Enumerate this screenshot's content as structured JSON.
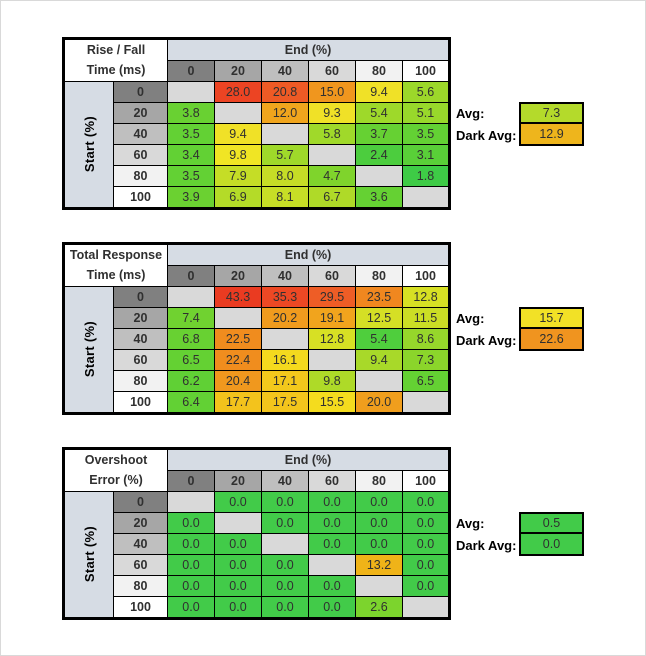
{
  "page": {
    "background": "#FFFFFF",
    "frame_border": "#D9D9D9"
  },
  "shared": {
    "header_shades": [
      "#808080",
      "#A6A6A6",
      "#BFBFBF",
      "#D9D9D9",
      "#F2F2F2",
      "#FFFFFF"
    ],
    "header_band_color": "#D6DCE4",
    "blank_cell_color": "#D9D9D9",
    "grid_color": "#000000",
    "value_text_color": "#303030"
  },
  "chart_data": [
    {
      "type": "heatmap",
      "id": "rise-fall-time",
      "title_line1": "Rise / Fall",
      "title_line2": "Time (ms)",
      "x_axis_label": "End (%)",
      "y_axis_label": "Start (%)",
      "columns": [
        0,
        20,
        40,
        60,
        80,
        100
      ],
      "rows": [
        0,
        20,
        40,
        60,
        80,
        100
      ],
      "values": [
        [
          null,
          28.0,
          20.8,
          15.0,
          9.4,
          5.6
        ],
        [
          3.8,
          null,
          12.0,
          9.3,
          5.4,
          5.1
        ],
        [
          3.5,
          9.4,
          null,
          5.8,
          3.7,
          3.5
        ],
        [
          3.4,
          9.8,
          5.7,
          null,
          2.4,
          3.1
        ],
        [
          3.5,
          7.9,
          8.0,
          4.7,
          null,
          1.8
        ],
        [
          3.9,
          6.9,
          8.1,
          6.7,
          3.6,
          null
        ]
      ],
      "cell_colors": [
        [
          null,
          "#EC4423",
          "#EE5A25",
          "#F0961E",
          "#F0E127",
          "#9CD82A"
        ],
        [
          "#69D132",
          null,
          "#F0A51D",
          "#F0E127",
          "#9ED92A",
          "#98D82B"
        ],
        [
          "#63D134",
          "#F0E127",
          null,
          "#A0D92A",
          "#66D133",
          "#63D134"
        ],
        [
          "#62D134",
          "#F0E524",
          "#9FD92A",
          null,
          "#4CCD3E",
          "#59CF38"
        ],
        [
          "#63D134",
          "#C5DD26",
          "#C6DD26",
          "#7FD42C",
          null,
          "#3ECB46"
        ],
        [
          "#6BD131",
          "#B4DB28",
          "#C7DE26",
          "#AFDA28",
          "#65D133",
          null
        ]
      ],
      "avg": {
        "label": "Avg:",
        "value": 7.3,
        "color": "#B4DA2B"
      },
      "dark_avg": {
        "label": "Dark Avg:",
        "value": 12.9,
        "color": "#EEB51C"
      }
    },
    {
      "type": "heatmap",
      "id": "total-response-time",
      "title_line1": "Total Response",
      "title_line2": "Time (ms)",
      "x_axis_label": "End (%)",
      "y_axis_label": "Start (%)",
      "columns": [
        0,
        20,
        40,
        60,
        80,
        100
      ],
      "rows": [
        0,
        20,
        40,
        60,
        80,
        100
      ],
      "values": [
        [
          null,
          43.3,
          35.3,
          29.5,
          23.5,
          12.8
        ],
        [
          7.4,
          null,
          20.2,
          19.1,
          12.5,
          11.5
        ],
        [
          6.8,
          22.5,
          null,
          12.8,
          5.4,
          8.6
        ],
        [
          6.5,
          22.4,
          16.1,
          null,
          9.4,
          7.3
        ],
        [
          6.2,
          20.4,
          17.1,
          9.8,
          null,
          6.5
        ],
        [
          6.4,
          17.7,
          17.5,
          15.5,
          20.0,
          null
        ]
      ],
      "cell_colors": [
        [
          null,
          "#EA3B21",
          "#EC4824",
          "#EE5D26",
          "#F0871F",
          "#D7E024"
        ],
        [
          "#70D230",
          null,
          "#F09B1E",
          "#F1A41D",
          "#D5DF25",
          "#CBDE25"
        ],
        [
          "#68D132",
          "#F08C1E",
          null,
          "#D7E024",
          "#4FCE3D",
          "#96D72B"
        ],
        [
          "#64D133",
          "#F08D1E",
          "#F4D91E",
          null,
          "#A8D929",
          "#8BD52B"
        ],
        [
          "#60D035",
          "#F0981E",
          "#F3C81C",
          "#AEDA28",
          null,
          "#64D133"
        ],
        [
          "#62D134",
          "#F3C31C",
          "#F3C51C",
          "#F4DC1E",
          "#F09E1D",
          null
        ]
      ],
      "avg": {
        "label": "Avg:",
        "value": 15.7,
        "color": "#F2E126"
      },
      "dark_avg": {
        "label": "Dark Avg:",
        "value": 22.6,
        "color": "#F0941F"
      }
    },
    {
      "type": "heatmap",
      "id": "overshoot-error",
      "title_line1": "Overshoot",
      "title_line2": "Error (%)",
      "x_axis_label": "End (%)",
      "y_axis_label": "Start (%)",
      "columns": [
        0,
        20,
        40,
        60,
        80,
        100
      ],
      "rows": [
        0,
        20,
        40,
        60,
        80,
        100
      ],
      "values": [
        [
          null,
          0.0,
          0.0,
          0.0,
          0.0,
          0.0
        ],
        [
          0.0,
          null,
          0.0,
          0.0,
          0.0,
          0.0
        ],
        [
          0.0,
          0.0,
          null,
          0.0,
          0.0,
          0.0
        ],
        [
          0.0,
          0.0,
          0.0,
          null,
          13.2,
          0.0
        ],
        [
          0.0,
          0.0,
          0.0,
          0.0,
          null,
          0.0
        ],
        [
          0.0,
          0.0,
          0.0,
          0.0,
          2.6,
          null
        ]
      ],
      "cell_colors": [
        [
          null,
          "#42CB49",
          "#42CB49",
          "#42CB49",
          "#42CB49",
          "#42CB49"
        ],
        [
          "#42CB49",
          null,
          "#42CB49",
          "#42CB49",
          "#42CB49",
          "#42CB49"
        ],
        [
          "#42CB49",
          "#42CB49",
          null,
          "#42CB49",
          "#42CB49",
          "#42CB49"
        ],
        [
          "#42CB49",
          "#42CB49",
          "#42CB49",
          null,
          "#EFB318",
          "#42CB49"
        ],
        [
          "#42CB49",
          "#42CB49",
          "#42CB49",
          "#42CB49",
          null,
          "#42CB49"
        ],
        [
          "#42CB49",
          "#42CB49",
          "#42CB49",
          "#42CB49",
          "#7CD42D",
          null
        ]
      ],
      "avg": {
        "label": "Avg:",
        "value": 0.5,
        "color": "#42CB49"
      },
      "dark_avg": {
        "label": "Dark Avg:",
        "value": 0.0,
        "color": "#42CB49"
      }
    }
  ]
}
